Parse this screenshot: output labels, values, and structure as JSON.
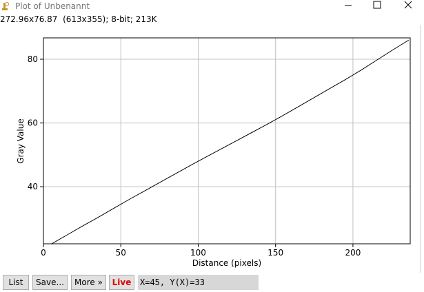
{
  "window": {
    "title": "Plot of Unbenannt",
    "info": "272.96x76.87  (613x355); 8-bit; 213K"
  },
  "chart_data": {
    "type": "line",
    "xlabel": "Distance (pixels)",
    "ylabel": "Gray Value",
    "color": "#000000",
    "grid": true,
    "x": [
      5,
      15,
      25,
      35,
      45,
      55,
      65,
      75,
      85,
      95,
      105,
      115,
      125,
      135,
      145,
      155,
      165,
      175,
      185,
      195,
      205,
      215,
      225,
      236
    ],
    "values": [
      22,
      24.8,
      27.6,
      30.3,
      33.1,
      35.9,
      38.6,
      41.3,
      44,
      46.7,
      49.3,
      51.9,
      54.5,
      57.1,
      59.7,
      62.4,
      65.2,
      68,
      70.8,
      73.6,
      76.5,
      79.6,
      82.7,
      86
    ],
    "xlim": [
      0,
      237
    ],
    "ylim": [
      22.1,
      86.7
    ],
    "xticks": [
      0,
      50,
      100,
      150,
      200
    ],
    "yticks": [
      40,
      60,
      80
    ]
  },
  "buttons": [
    "List",
    "Save...",
    "More »",
    "Live"
  ],
  "status": "X=45, Y(X)=33"
}
